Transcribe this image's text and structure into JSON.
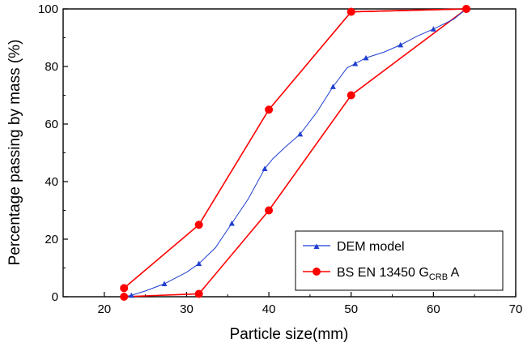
{
  "chart_data": {
    "type": "line",
    "xlabel": "Particle size(mm)",
    "ylabel": "Percentage passing by mass (%)",
    "xlim": [
      15,
      70
    ],
    "ylim": [
      0,
      100
    ],
    "xticks": [
      "20",
      "30",
      "40",
      "50",
      "60",
      "70"
    ],
    "yticks": [
      "0",
      "20",
      "40",
      "60",
      "80",
      "100"
    ],
    "legend_position": "bottom-right",
    "grid": false,
    "series": [
      {
        "name": "DEM model",
        "color": "#1f3fd0",
        "marker": "triangle",
        "x": [
          22.4,
          23.3,
          25.0,
          27.3,
          30.0,
          31.5,
          33.5,
          35.5,
          37.5,
          39.5,
          40.5,
          42.0,
          43.8,
          45.8,
          47.8,
          49.5,
          50.5,
          51.8,
          54.0,
          56.0,
          58.0,
          60.0,
          62.5,
          64.0
        ],
        "y": [
          0,
          0.5,
          2,
          4.5,
          8.5,
          11.5,
          17,
          25.5,
          34,
          44.5,
          48,
          52,
          56.5,
          64,
          73,
          79.5,
          81,
          83,
          85,
          87.5,
          90.5,
          93,
          96.5,
          100
        ]
      },
      {
        "name_text": "BS EN 13450 G",
        "name_sub": "CRB",
        "name_suffix": " A",
        "color": "#ff0000",
        "marker": "circle",
        "lower": {
          "x": [
            22.4,
            31.5,
            40.0,
            50.0,
            64.0
          ],
          "y": [
            0,
            1,
            30,
            70,
            100
          ]
        },
        "upper": {
          "x": [
            22.4,
            31.5,
            40.0,
            50.0,
            64.0
          ],
          "y": [
            3,
            25,
            65,
            99,
            100
          ]
        }
      }
    ]
  }
}
